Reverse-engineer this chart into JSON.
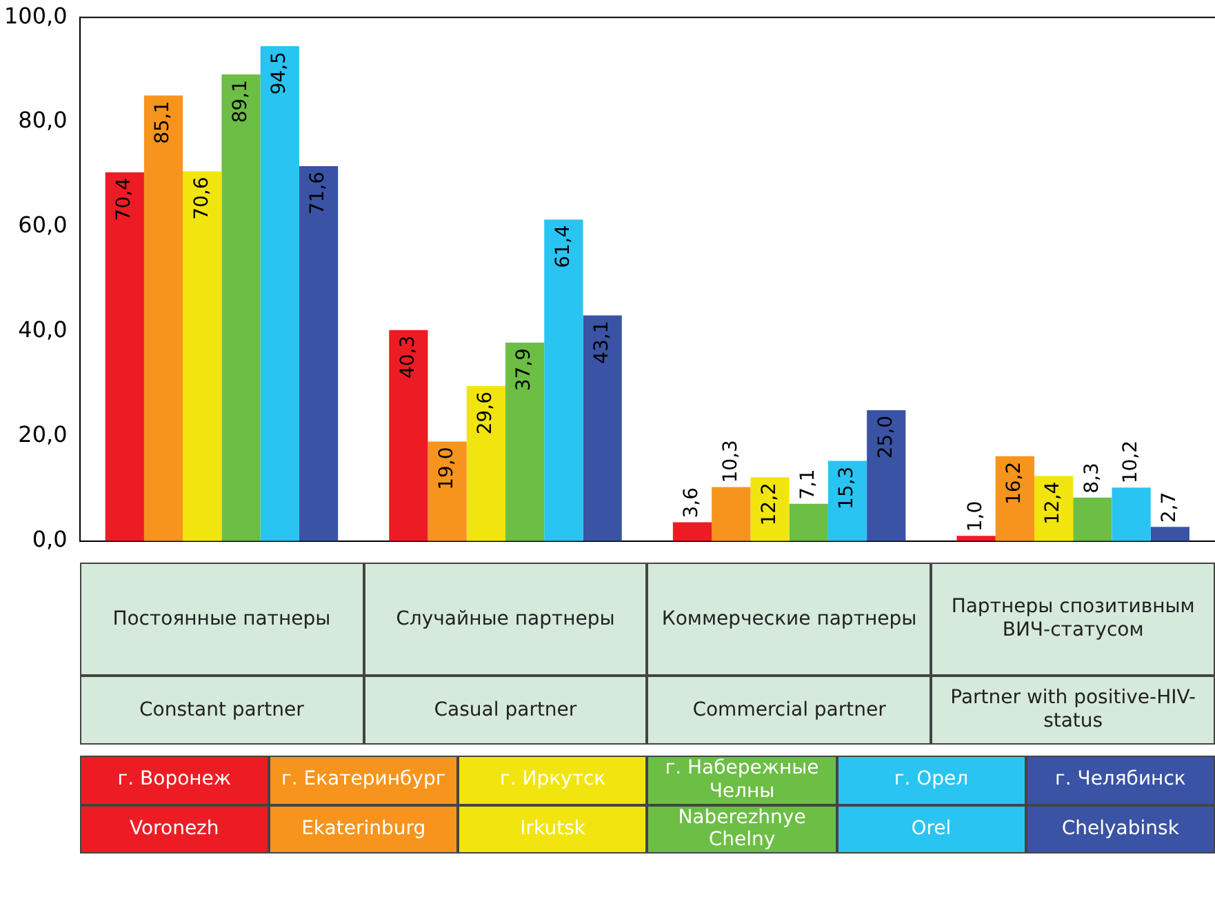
{
  "chart_data": {
    "type": "bar",
    "categories": [
      "Постоянные патнеры\nConstant partner",
      "Случайные партнеры\nCasual partner",
      "Коммерческие партнеры\nCommercial partner",
      "Партнеры спозитивным ВИЧ-статусом\nPartner with positive-HIV-status"
    ],
    "series": [
      {
        "name": "г. Воронеж\nVoronezh",
        "color": "#ed1c24",
        "values": [
          70.4,
          40.3,
          3.6,
          1.0
        ],
        "value_labels": [
          "70,4",
          "40,3",
          "3,6",
          "1,0"
        ]
      },
      {
        "name": "г. Екатеринбург\nEkaterinburg",
        "color": "#f7941d",
        "values": [
          85.1,
          19.0,
          10.3,
          16.2
        ],
        "value_labels": [
          "85,1",
          "19,0",
          "10,3",
          "16,2"
        ]
      },
      {
        "name": "г. Иркутск\nIrkutsk",
        "color": "#f2e50f",
        "values": [
          70.6,
          29.6,
          12.2,
          12.4
        ],
        "value_labels": [
          "70,6",
          "29,6",
          "12,2",
          "12,4"
        ]
      },
      {
        "name": "г. Набережные Челны\nNaberezhnye Chelny",
        "color": "#6cbe45",
        "values": [
          89.1,
          37.9,
          7.1,
          8.3
        ],
        "value_labels": [
          "89,1",
          "37,9",
          "7,1",
          "8,3"
        ]
      },
      {
        "name": "г. Орел\nOrel",
        "color": "#2ac4f2",
        "values": [
          94.5,
          61.4,
          15.3,
          10.2
        ],
        "value_labels": [
          "94,5",
          "61,4",
          "15,3",
          "10,2"
        ]
      },
      {
        "name": "г. Челябинск\nChelyabinsk",
        "color": "#3a53a4",
        "values": [
          71.6,
          43.1,
          25.0,
          2.7
        ],
        "value_labels": [
          "71,6",
          "43,1",
          "25,0",
          "2,7"
        ]
      }
    ],
    "ylim": [
      0,
      100
    ],
    "yticks": [
      {
        "value": 0,
        "label": "0,0"
      },
      {
        "value": 20,
        "label": "20,0"
      },
      {
        "value": 40,
        "label": "40,0"
      },
      {
        "value": 60,
        "label": "60,0"
      },
      {
        "value": 80,
        "label": "80,0"
      },
      {
        "value": 100,
        "label": "100,0"
      }
    ],
    "grid": false,
    "legend": "bottom"
  }
}
